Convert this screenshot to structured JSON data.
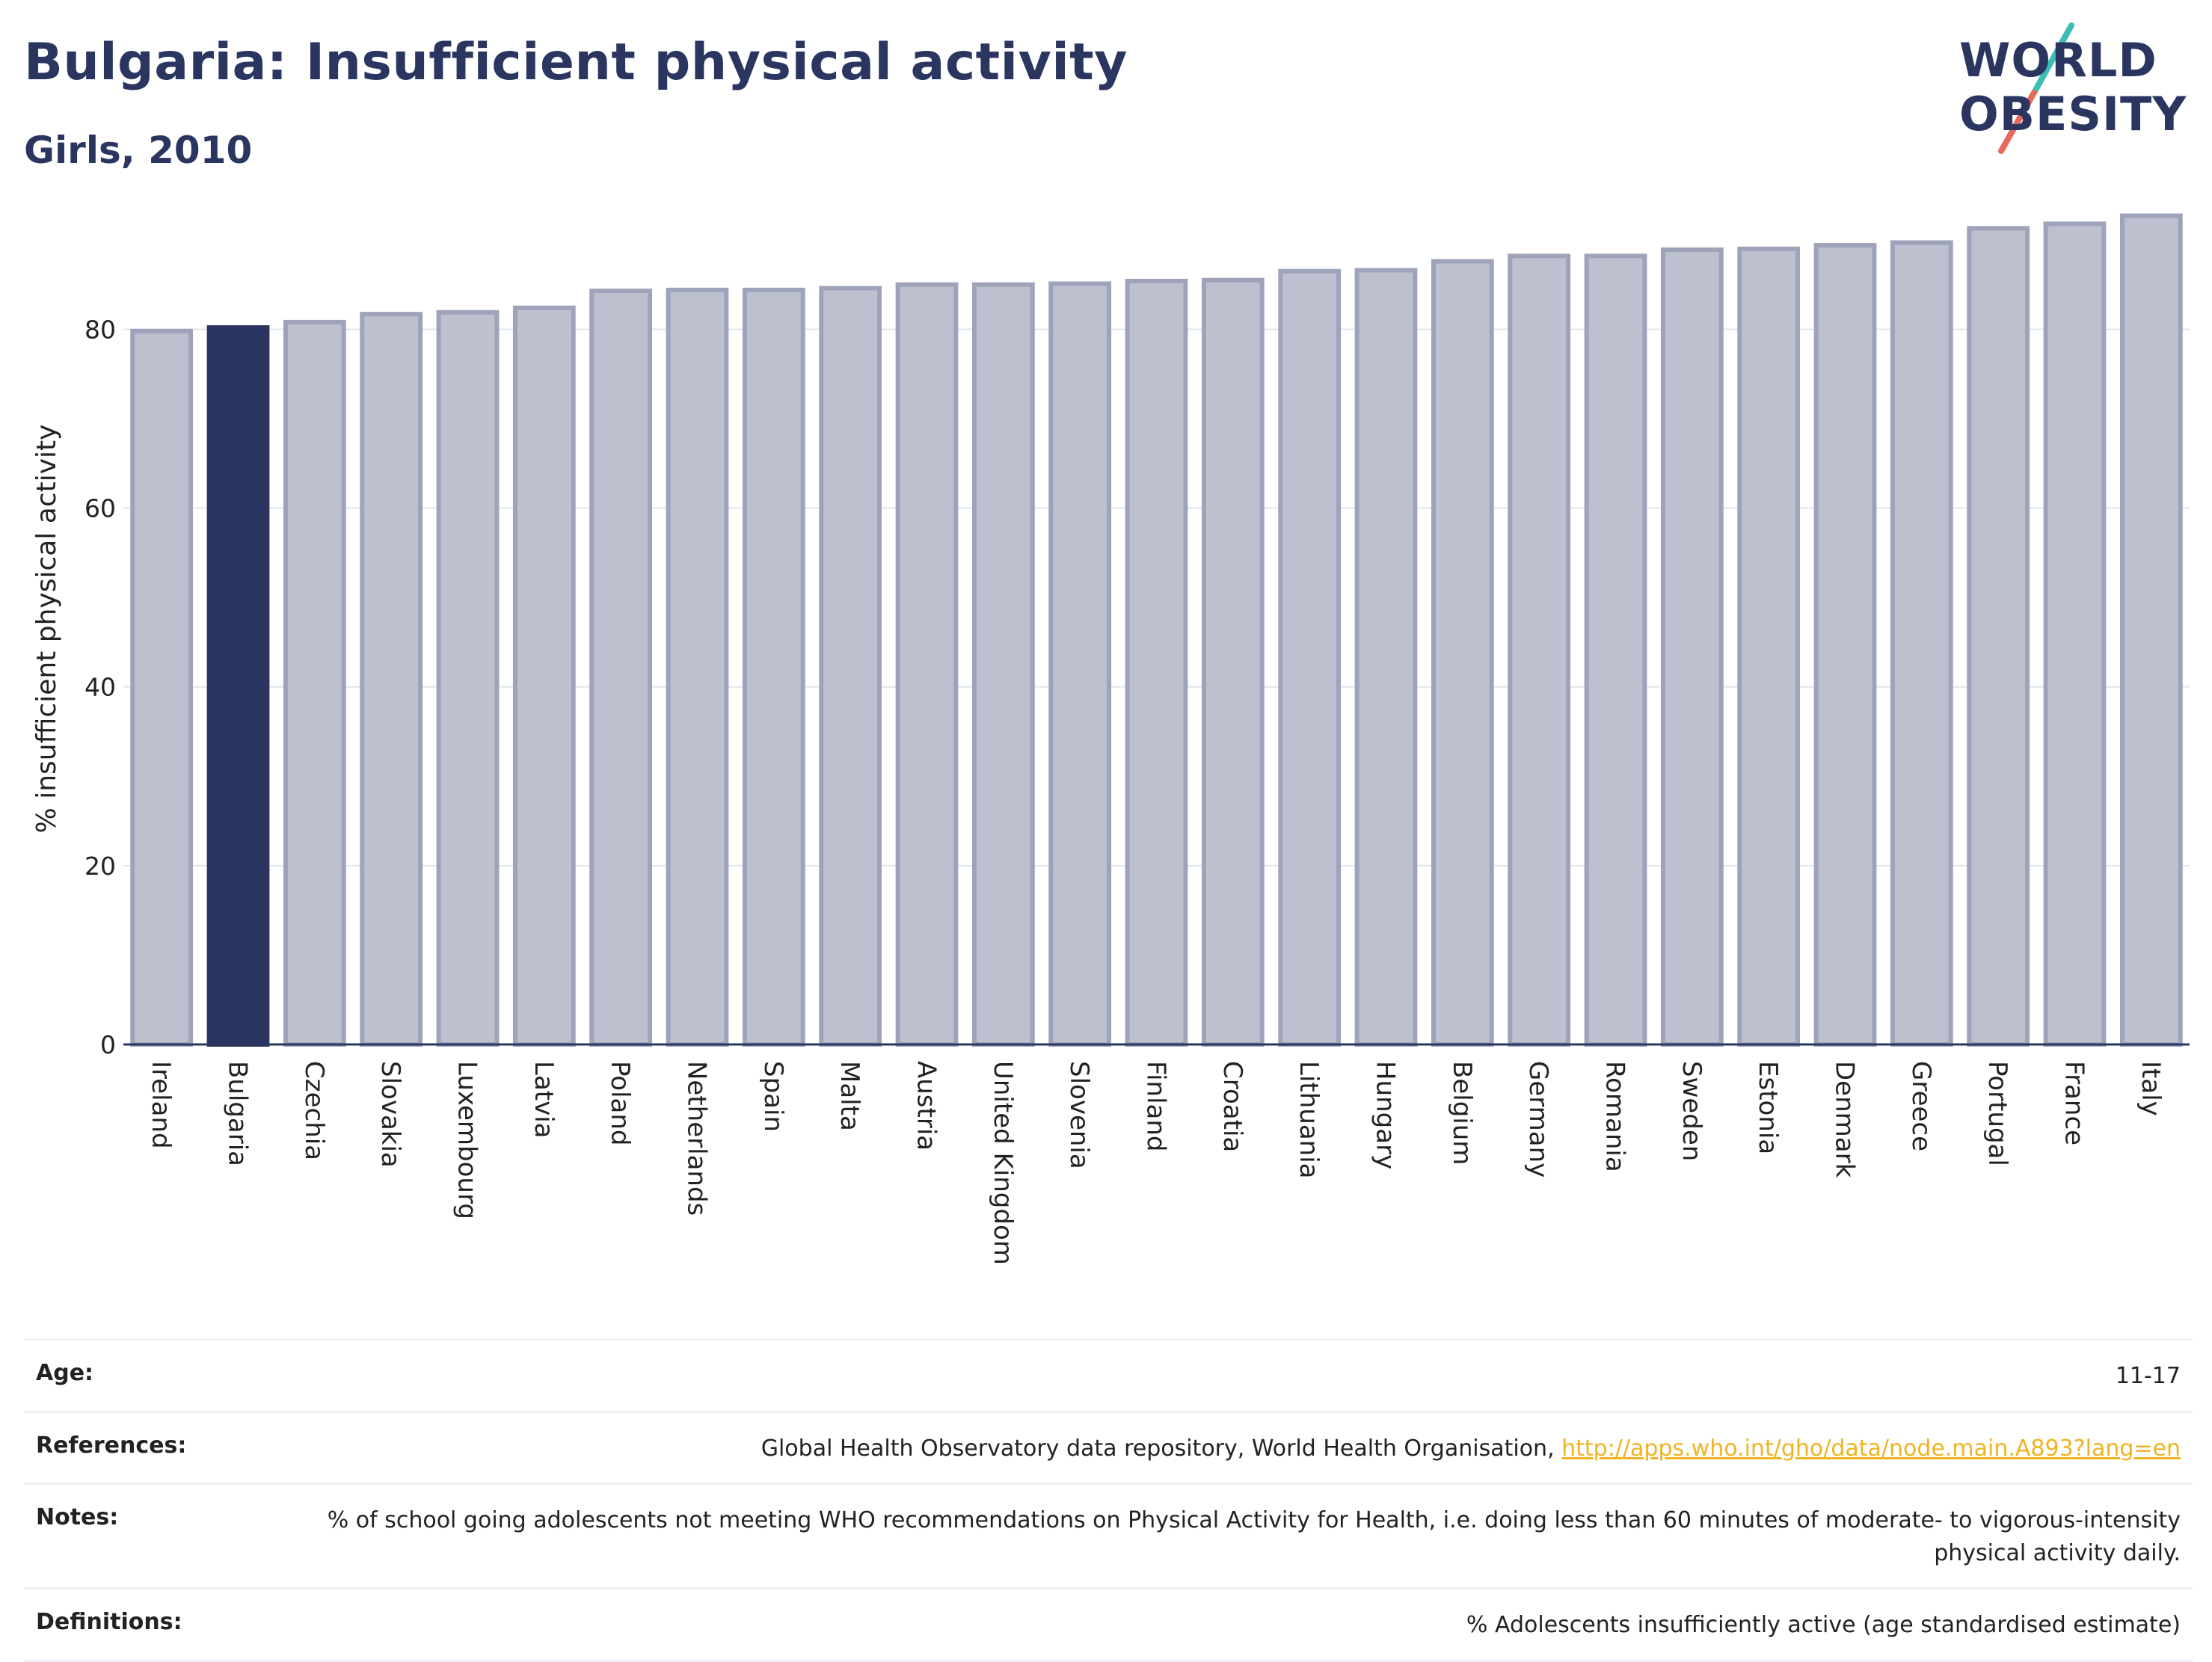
{
  "header": {
    "title": "Bulgaria: Insufficient physical activity",
    "subtitle": "Girls, 2010"
  },
  "logo": {
    "line1": "WORLD",
    "line2": "OBESITY",
    "colors": {
      "text": "#2a3560",
      "slash_teal": "#3bbfb5",
      "slash_red": "#e8685a"
    }
  },
  "chart_data": {
    "type": "bar",
    "title": "Bulgaria: Insufficient physical activity",
    "subtitle": "Girls, 2010",
    "xlabel": "",
    "ylabel": "% insufficient physical activity",
    "ylim": [
      0,
      93
    ],
    "yticks": [
      0,
      20,
      40,
      60,
      80
    ],
    "grid": true,
    "highlight": "Bulgaria",
    "colors": {
      "default_fill": "#bcc0cf",
      "default_stroke": "#9ea3ba",
      "highlight_fill": "#2a3560"
    },
    "categories": [
      "Ireland",
      "Bulgaria",
      "Czechia",
      "Slovakia",
      "Luxembourg",
      "Latvia",
      "Poland",
      "Netherlands",
      "Spain",
      "Malta",
      "Austria",
      "United Kingdom",
      "Slovenia",
      "Finland",
      "Croatia",
      "Lithuania",
      "Hungary",
      "Belgium",
      "Germany",
      "Romania",
      "Sweden",
      "Estonia",
      "Denmark",
      "Greece",
      "Portugal",
      "France",
      "Italy"
    ],
    "values": [
      79.8,
      80.2,
      80.8,
      81.7,
      81.9,
      82.4,
      84.3,
      84.4,
      84.4,
      84.6,
      85.0,
      85.0,
      85.1,
      85.4,
      85.5,
      86.5,
      86.6,
      87.6,
      88.2,
      88.2,
      88.9,
      89.0,
      89.4,
      89.7,
      91.3,
      91.8,
      92.7
    ]
  },
  "meta": {
    "age_label": "Age:",
    "age_value": "11-17",
    "references_label": "References:",
    "references_text": "Global Health Observatory data repository, World Health Organisation, ",
    "references_link": "http://apps.who.int/gho/data/node.main.A893?lang=en",
    "notes_label": "Notes:",
    "notes_value": "% of school going adolescents not meeting WHO recommendations on Physical Activity for Health, i.e. doing less than 60 minutes of moderate- to vigorous-intensity physical activity daily.",
    "definitions_label": "Definitions:",
    "definitions_value": "% Adolescents insufficiently active (age standardised estimate)"
  }
}
